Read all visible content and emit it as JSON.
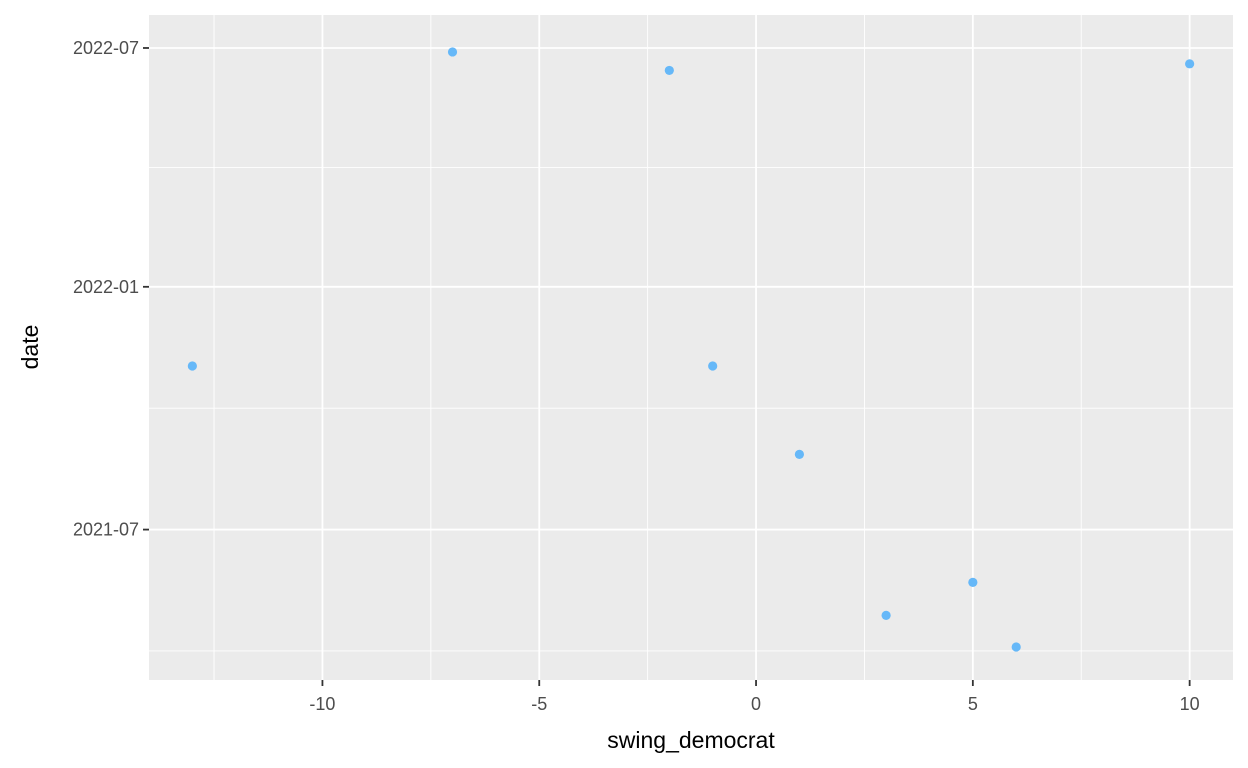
{
  "chart_data": {
    "type": "scatter",
    "title": "",
    "xlabel": "swing_democrat",
    "ylabel": "date",
    "x_axis": {
      "range": [
        -14,
        11
      ],
      "ticks": [
        -10,
        -5,
        0,
        5,
        10
      ],
      "tick_labels": [
        "-10",
        "-5",
        "0",
        "5",
        "10"
      ]
    },
    "y_axis": {
      "scale": "date",
      "range": [
        "2021-03-09",
        "2022-07-26"
      ],
      "ticks": [
        "2021-07-01",
        "2022-01-01",
        "2022-07-01"
      ],
      "tick_labels": [
        "2021-07",
        "2022-01",
        "2022-07"
      ]
    },
    "grid": true,
    "legend": "none",
    "point_color": "#66B8F8",
    "panel_color": "#EBEBEB",
    "grid_color": "#FFFFFF",
    "points": [
      {
        "x": -13,
        "y": "2021-11-02"
      },
      {
        "x": -7,
        "y": "2022-06-28"
      },
      {
        "x": -2,
        "y": "2022-06-14"
      },
      {
        "x": -1,
        "y": "2021-11-02"
      },
      {
        "x": 1,
        "y": "2021-08-27"
      },
      {
        "x": 3,
        "y": "2021-04-27"
      },
      {
        "x": 5,
        "y": "2021-05-22"
      },
      {
        "x": 6,
        "y": "2021-04-03"
      },
      {
        "x": 10,
        "y": "2022-06-19"
      }
    ]
  }
}
